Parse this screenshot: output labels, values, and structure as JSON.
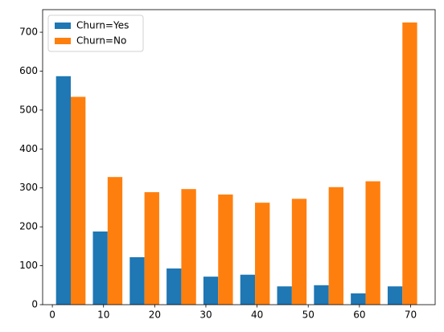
{
  "chart_data": {
    "type": "histogram",
    "bins": [
      0,
      7.2,
      14.4,
      21.6,
      28.8,
      36,
      43.2,
      50.4,
      57.6,
      64.8,
      72
    ],
    "series": [
      {
        "name": "Churn=Yes",
        "color": "#1f77b4",
        "values": [
          587,
          188,
          122,
          93,
          72,
          77,
          47,
          50,
          29,
          47
        ]
      },
      {
        "name": "Churn=No",
        "color": "#ff7f0e",
        "values": [
          534,
          328,
          289,
          297,
          283,
          262,
          272,
          302,
          317,
          725
        ]
      }
    ],
    "xlim": [
      -1.9,
      74.8
    ],
    "xticks": [
      0,
      10,
      20,
      30,
      40,
      50,
      60,
      70
    ],
    "ylim": [
      0,
      758
    ],
    "yticks": [
      0,
      100,
      200,
      300,
      400,
      500,
      600,
      700
    ],
    "legend": "upper left",
    "grid": false
  }
}
